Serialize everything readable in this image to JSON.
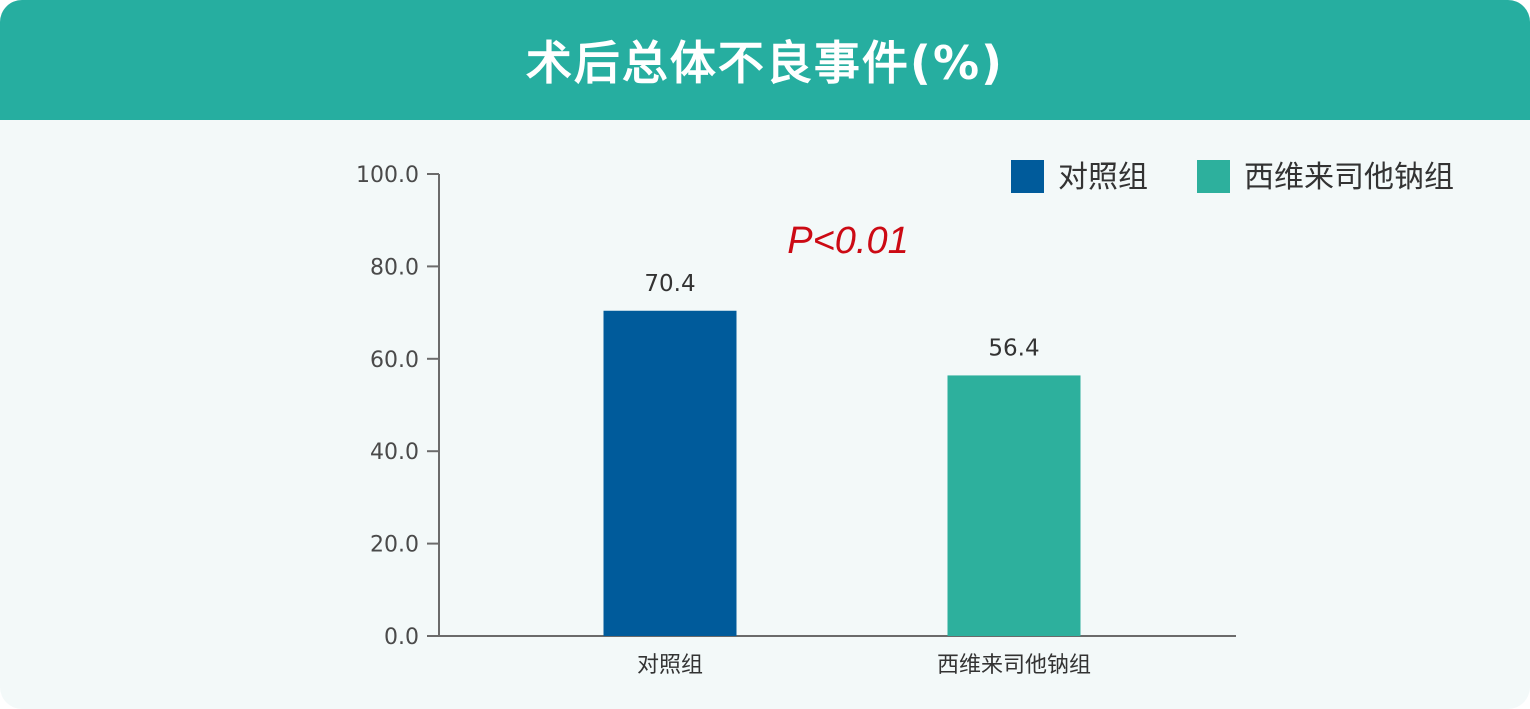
{
  "header": {
    "title": "术后总体不良事件(%)"
  },
  "chart_data": {
    "type": "bar",
    "title": "术后总体不良事件(%)",
    "categories": [
      "对照组",
      "西维来司他钠组"
    ],
    "values": [
      70.4,
      56.4
    ],
    "value_labels": [
      "70.4",
      "56.4"
    ],
    "colors": [
      "#005b9b",
      "#2db09d"
    ],
    "ylim": [
      0,
      100
    ],
    "yticks": [
      0,
      20,
      40,
      60,
      80,
      100
    ],
    "ytick_labels": [
      "0.0",
      "20.0",
      "40.0",
      "60.0",
      "80.0",
      "100.0"
    ],
    "xlabel": "",
    "ylabel": "",
    "grid": false,
    "legend": {
      "position": "top-right",
      "entries": [
        {
          "label": "对照组",
          "color": "#005b9b"
        },
        {
          "label": "西维来司他钠组",
          "color": "#2db09d"
        }
      ]
    },
    "annotation": {
      "text": "P<0.01",
      "color": "#cc0a14"
    }
  }
}
